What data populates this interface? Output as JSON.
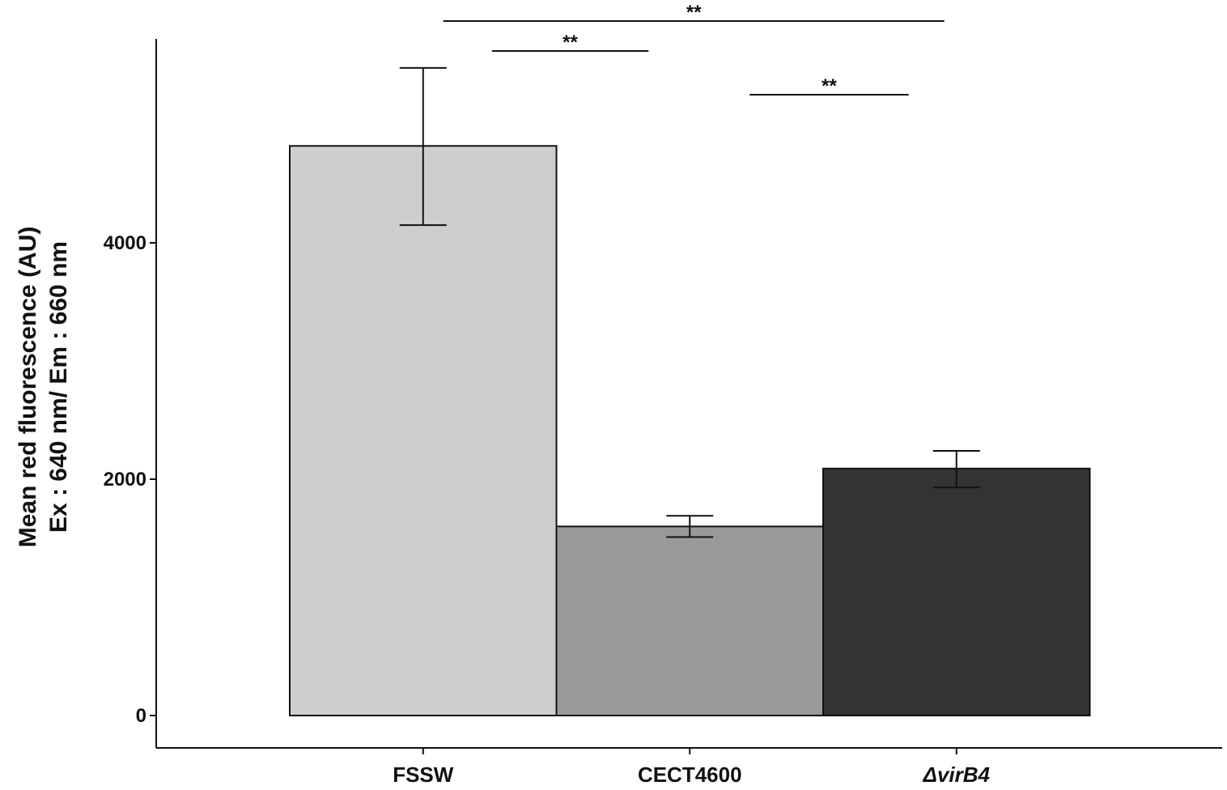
{
  "chart_data": {
    "type": "bar",
    "categories": [
      "FSSW",
      "CECT4600",
      "ΔvirB4"
    ],
    "category_italic": [
      false,
      false,
      true
    ],
    "values": [
      4820,
      1600,
      2090
    ],
    "error_low": [
      4150,
      1510,
      1930
    ],
    "error_high": [
      5480,
      1690,
      2240
    ],
    "colors": [
      "#cecece",
      "#999999",
      "#333333"
    ],
    "ylabel_line1": "Mean red fluorescence (AU)",
    "ylabel_line2": "Ex : 640 nm/ Em : 660 nm",
    "xlabel": "",
    "title": "",
    "yticks": [
      0,
      2000,
      4000
    ],
    "ylim": [
      -270,
      5700
    ],
    "grid": false,
    "significance": [
      {
        "from": "FSSW",
        "to": "CECT4600",
        "label": "**"
      },
      {
        "from": "CECT4600",
        "to": "ΔvirB4",
        "label": "**"
      },
      {
        "from": "FSSW",
        "to": "ΔvirB4",
        "label": "**"
      }
    ]
  }
}
